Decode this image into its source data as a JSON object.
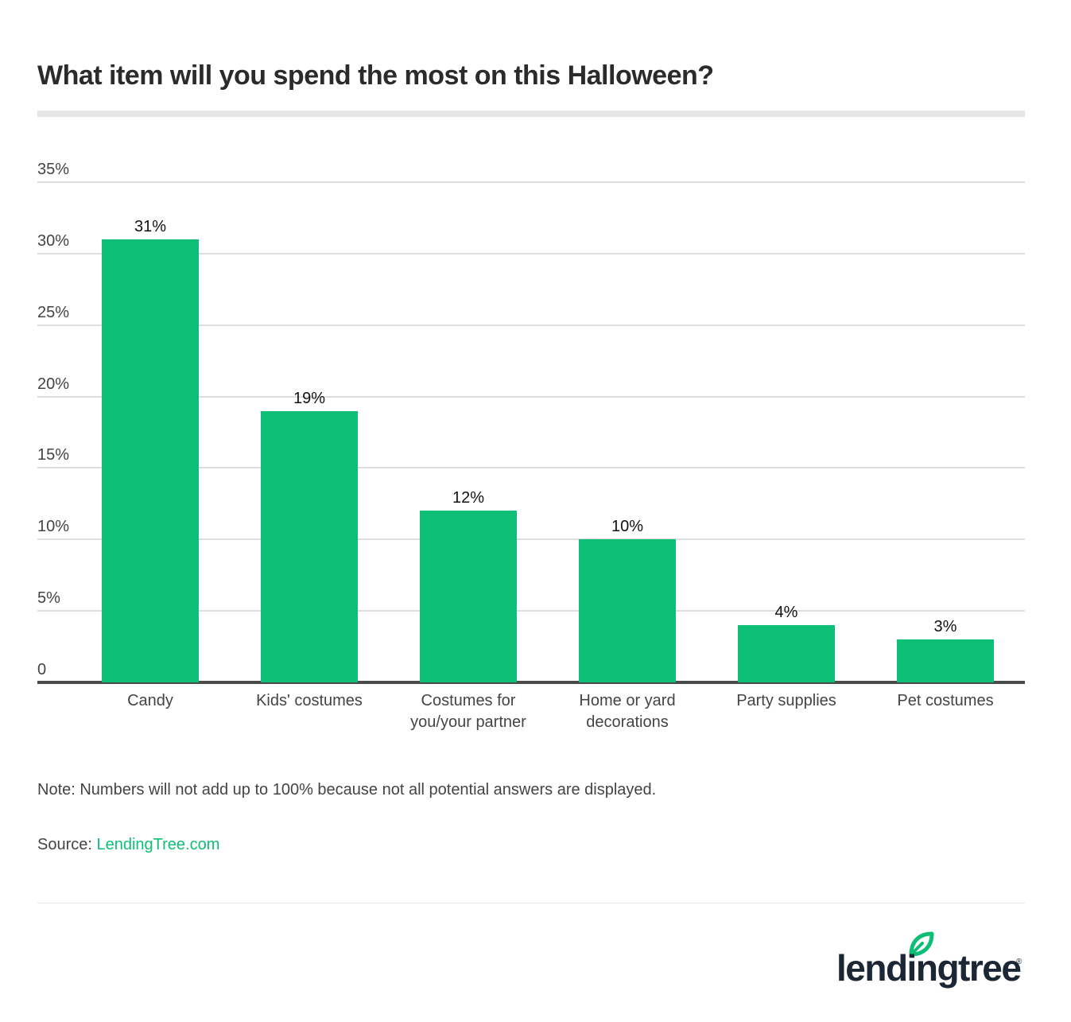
{
  "title": "What item will you spend the most on this Halloween?",
  "colors": {
    "bar": "#0dbf76",
    "title": "#2b2b2b",
    "text": "#444444",
    "gridline": "#dedede",
    "baseline": "#4a4a4a",
    "source_link": "#0dbf76",
    "logo_text": "#1c2735"
  },
  "y_axis": {
    "ticks": [
      "35%",
      "30%",
      "25%",
      "20%",
      "15%",
      "10%",
      "5%",
      "0"
    ]
  },
  "bars": [
    {
      "category": "Candy",
      "value_label": "31%"
    },
    {
      "category": "Kids' costumes",
      "value_label": "19%"
    },
    {
      "category": "Costumes for\nyou/your partner",
      "value_label": "12%"
    },
    {
      "category": "Home or yard\ndecorations",
      "value_label": "10%"
    },
    {
      "category": "Party supplies",
      "value_label": "4%"
    },
    {
      "category": "Pet costumes",
      "value_label": "3%"
    }
  ],
  "note": "Note: Numbers will not add up to 100% because not all potential answers are displayed.",
  "source": {
    "prefix": "Source: ",
    "link_text": "LendingTree.com"
  },
  "logo": {
    "text": "lendingtree",
    "registered": "®",
    "icon": "leaf-icon"
  },
  "chart_data": {
    "type": "bar",
    "title": "What item will you spend the most on this Halloween?",
    "categories": [
      "Candy",
      "Kids' costumes",
      "Costumes for you/your partner",
      "Home or yard decorations",
      "Party supplies",
      "Pet costumes"
    ],
    "values": [
      31,
      19,
      12,
      10,
      4,
      3
    ],
    "data_labels": [
      "31%",
      "19%",
      "12%",
      "10%",
      "4%",
      "3%"
    ],
    "xlabel": "",
    "ylabel": "",
    "ylim": [
      0,
      35
    ],
    "yticks": [
      0,
      5,
      10,
      15,
      20,
      25,
      30,
      35
    ],
    "ytick_labels": [
      "0",
      "5%",
      "10%",
      "15%",
      "20%",
      "25%",
      "30%",
      "35%"
    ],
    "grid": true,
    "legend": null,
    "annotations": [
      "Note: Numbers will not add up to 100% because not all potential answers are displayed.",
      "Source: LendingTree.com"
    ]
  }
}
